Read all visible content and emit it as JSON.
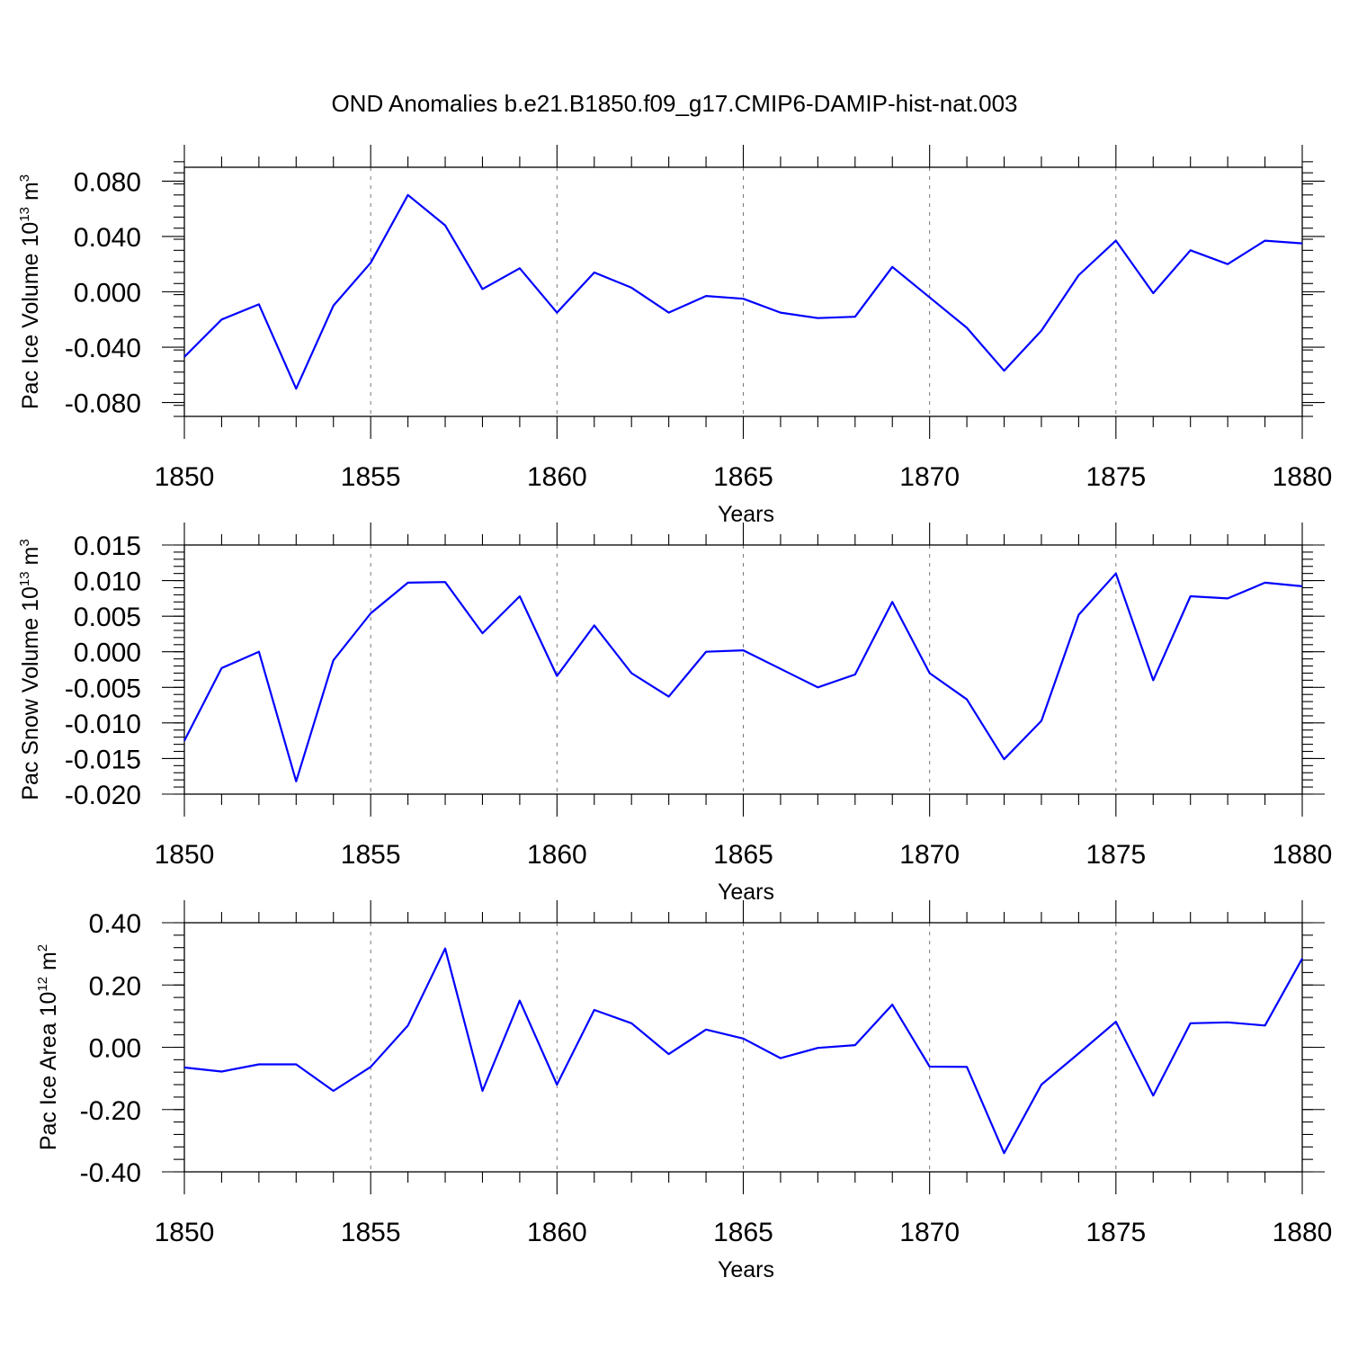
{
  "title": "OND Anomalies b.e21.B1850.f09_g17.CMIP6-DAMIP-hist-nat.003",
  "series_color": "#0000ff",
  "chart_data": [
    {
      "type": "line",
      "ylabel_main": "Pac Ice Volume 10",
      "ylabel_exp": "13",
      "ylabel_unit": "m",
      "ylabel_unit_exp": "3",
      "xlabel": "Years",
      "xlim": [
        1850,
        1880
      ],
      "ylim": [
        -0.09,
        0.09
      ],
      "ytick_values": [
        -0.08,
        -0.04,
        0.0,
        0.04,
        0.08
      ],
      "ytick_labels": [
        "-0.080",
        "-0.040",
        "0.000",
        "0.040",
        "0.080"
      ],
      "yminor_step": 0.008,
      "xtick_values": [
        1850,
        1855,
        1860,
        1865,
        1870,
        1875,
        1880
      ],
      "xtick_labels": [
        "1850",
        "1855",
        "1860",
        "1865",
        "1870",
        "1875",
        "1880"
      ],
      "series": [
        {
          "name": "Pac Ice Volume",
          "x": [
            1850,
            1851,
            1852,
            1853,
            1854,
            1855,
            1856,
            1857,
            1858,
            1859,
            1860,
            1861,
            1862,
            1863,
            1864,
            1865,
            1866,
            1867,
            1868,
            1869,
            1870,
            1871,
            1872,
            1873,
            1874,
            1875,
            1876,
            1877,
            1878,
            1879,
            1880
          ],
          "values": [
            -0.047,
            -0.02,
            -0.009,
            -0.07,
            -0.01,
            0.021,
            0.07,
            0.048,
            0.002,
            0.017,
            -0.015,
            0.014,
            0.003,
            -0.015,
            -0.003,
            -0.005,
            -0.015,
            -0.019,
            -0.018,
            0.018,
            -0.004,
            -0.026,
            -0.057,
            -0.028,
            0.012,
            0.037,
            -0.001,
            0.03,
            0.02,
            0.037,
            0.035
          ]
        }
      ]
    },
    {
      "type": "line",
      "ylabel_main": "Pac Snow Volume 10",
      "ylabel_exp": "13",
      "ylabel_unit": "m",
      "ylabel_unit_exp": "3",
      "xlabel": "Years",
      "xlim": [
        1850,
        1880
      ],
      "ylim": [
        -0.02,
        0.015
      ],
      "ytick_values": [
        -0.02,
        -0.015,
        -0.01,
        -0.005,
        0.0,
        0.005,
        0.01,
        0.015
      ],
      "ytick_labels": [
        "-0.020",
        "-0.015",
        "-0.010",
        "-0.005",
        "0.000",
        "0.005",
        "0.010",
        "0.015"
      ],
      "yminor_step": 0.001,
      "xtick_values": [
        1850,
        1855,
        1860,
        1865,
        1870,
        1875,
        1880
      ],
      "xtick_labels": [
        "1850",
        "1855",
        "1860",
        "1865",
        "1870",
        "1875",
        "1880"
      ],
      "series": [
        {
          "name": "Pac Snow Volume",
          "x": [
            1850,
            1851,
            1852,
            1853,
            1854,
            1855,
            1856,
            1857,
            1858,
            1859,
            1860,
            1861,
            1862,
            1863,
            1864,
            1865,
            1866,
            1867,
            1868,
            1869,
            1870,
            1871,
            1872,
            1873,
            1874,
            1875,
            1876,
            1877,
            1878,
            1879,
            1880
          ],
          "values": [
            -0.0125,
            -0.0023,
            0.0,
            -0.0182,
            -0.0012,
            0.0054,
            0.0097,
            0.0098,
            0.0026,
            0.0078,
            -0.0034,
            0.0037,
            -0.003,
            -0.0063,
            0.0,
            0.0002,
            -0.0024,
            -0.005,
            -0.0032,
            0.007,
            -0.003,
            -0.0067,
            -0.0151,
            -0.0097,
            0.0052,
            0.011,
            -0.004,
            0.0078,
            0.0075,
            0.0097,
            0.0092
          ]
        }
      ]
    },
    {
      "type": "line",
      "ylabel_main": "Pac Ice Area 10",
      "ylabel_exp": "12",
      "ylabel_unit": "m",
      "ylabel_unit_exp": "2",
      "xlabel": "Years",
      "xlim": [
        1850,
        1880
      ],
      "ylim": [
        -0.4,
        0.4
      ],
      "ytick_values": [
        -0.4,
        -0.2,
        0.0,
        0.2,
        0.4
      ],
      "ytick_labels": [
        "-0.40",
        "-0.20",
        "0.00",
        "0.20",
        "0.40"
      ],
      "yminor_step": 0.04,
      "xtick_values": [
        1850,
        1855,
        1860,
        1865,
        1870,
        1875,
        1880
      ],
      "xtick_labels": [
        "1850",
        "1855",
        "1860",
        "1865",
        "1870",
        "1875",
        "1880"
      ],
      "series": [
        {
          "name": "Pac Ice Area",
          "x": [
            1850,
            1851,
            1852,
            1853,
            1854,
            1855,
            1856,
            1857,
            1858,
            1859,
            1860,
            1861,
            1862,
            1863,
            1864,
            1865,
            1866,
            1867,
            1868,
            1869,
            1870,
            1871,
            1872,
            1873,
            1874,
            1875,
            1876,
            1877,
            1878,
            1879,
            1880
          ],
          "values": [
            -0.065,
            -0.078,
            -0.055,
            -0.055,
            -0.14,
            -0.063,
            0.07,
            0.317,
            -0.14,
            0.15,
            -0.12,
            0.12,
            0.077,
            -0.022,
            0.057,
            0.028,
            -0.035,
            -0.002,
            0.007,
            0.137,
            -0.062,
            -0.063,
            -0.34,
            -0.12,
            -0.02,
            0.082,
            -0.155,
            0.077,
            0.08,
            0.07,
            0.285
          ]
        }
      ]
    }
  ]
}
